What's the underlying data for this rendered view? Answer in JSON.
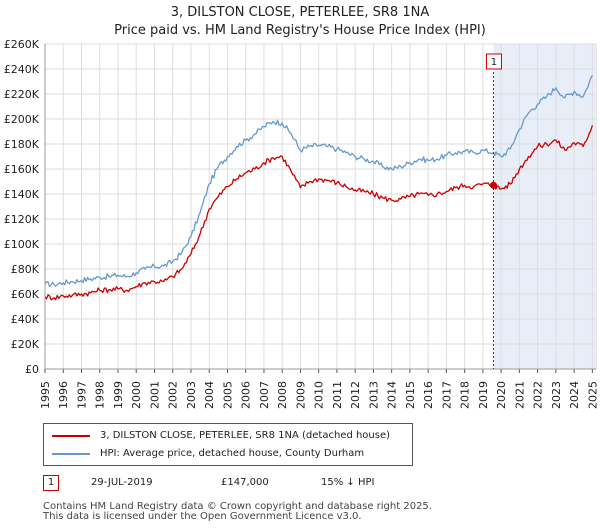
{
  "header": {
    "title": "3, DILSTON CLOSE, PETERLEE, SR8 1NA",
    "subtitle": "Price paid vs. HM Land Registry's House Price Index (HPI)"
  },
  "colors": {
    "property_line": "#cc0000",
    "hpi_line": "#6699cc",
    "shade": "#e8eef8",
    "marker_border": "#cc0000"
  },
  "chart_data": {
    "type": "line",
    "title": "3, DILSTON CLOSE, PETERLEE, SR8 1NA",
    "subtitle": "Price paid vs. HM Land Registry's House Price Index (HPI)",
    "xlim": [
      1995,
      2025.2
    ],
    "ylim": [
      0,
      260000
    ],
    "y_ticks": [
      0,
      20000,
      40000,
      60000,
      80000,
      100000,
      120000,
      140000,
      160000,
      180000,
      200000,
      220000,
      240000,
      260000
    ],
    "y_tick_labels": [
      "£0",
      "£20K",
      "£40K",
      "£60K",
      "£80K",
      "£100K",
      "£120K",
      "£140K",
      "£160K",
      "£180K",
      "£200K",
      "£220K",
      "£240K",
      "£260K"
    ],
    "x_ticks": [
      1995,
      1996,
      1997,
      1998,
      1999,
      2000,
      2001,
      2002,
      2003,
      2004,
      2005,
      2006,
      2007,
      2008,
      2009,
      2010,
      2011,
      2012,
      2013,
      2014,
      2015,
      2016,
      2017,
      2018,
      2019,
      2020,
      2021,
      2022,
      2023,
      2024,
      2025
    ],
    "x_tick_labels": [
      "1995",
      "1996",
      "1997",
      "1998",
      "1999",
      "2000",
      "2001",
      "2002",
      "2003",
      "2004",
      "2005",
      "2006",
      "2007",
      "2008",
      "2009",
      "2010",
      "2011",
      "2012",
      "2013",
      "2014",
      "2015",
      "2016",
      "2017",
      "2018",
      "2019",
      "2020",
      "2021",
      "2022",
      "2023",
      "2024",
      "2025"
    ],
    "grid": true,
    "series": [
      {
        "name": "3, DILSTON CLOSE, PETERLEE, SR8 1NA (detached house)",
        "color": "#cc0000",
        "x": [
          1995.0,
          1995.5,
          1996.0,
          1996.5,
          1997.0,
          1997.5,
          1998.0,
          1998.5,
          1999.0,
          1999.5,
          2000.0,
          2000.5,
          2001.0,
          2001.5,
          2002.0,
          2002.5,
          2003.0,
          2003.5,
          2004.0,
          2004.5,
          2005.0,
          2005.5,
          2006.0,
          2006.5,
          2007.0,
          2007.5,
          2008.0,
          2008.5,
          2009.0,
          2009.5,
          2010.0,
          2010.5,
          2011.0,
          2011.5,
          2012.0,
          2012.5,
          2013.0,
          2013.5,
          2014.0,
          2014.5,
          2015.0,
          2015.5,
          2016.0,
          2016.5,
          2017.0,
          2017.5,
          2018.0,
          2018.5,
          2019.0,
          2019.58,
          2020.0,
          2020.5,
          2021.0,
          2021.5,
          2022.0,
          2022.5,
          2023.0,
          2023.5,
          2024.0,
          2024.5,
          2025.0
        ],
        "values": [
          58000,
          57000,
          58500,
          59000,
          60000,
          61000,
          63000,
          63500,
          64000,
          63000,
          66000,
          69000,
          70000,
          70000,
          74000,
          80000,
          92000,
          108000,
          128000,
          138000,
          146000,
          152000,
          157000,
          160000,
          165000,
          169000,
          170000,
          158000,
          145000,
          150000,
          152000,
          151000,
          149000,
          146000,
          143000,
          142000,
          140000,
          137000,
          135000,
          136000,
          138000,
          140000,
          139000,
          140000,
          142000,
          145000,
          147000,
          146000,
          148000,
          147000,
          144000,
          148000,
          160000,
          170000,
          178000,
          180000,
          183000,
          175000,
          181000,
          178000,
          195000
        ]
      },
      {
        "name": "HPI: Average price, detached house, County Durham",
        "color": "#6699cc",
        "x": [
          1995.0,
          1995.5,
          1996.0,
          1996.5,
          1997.0,
          1997.5,
          1998.0,
          1998.5,
          1999.0,
          1999.5,
          2000.0,
          2000.5,
          2001.0,
          2001.5,
          2002.0,
          2002.5,
          2003.0,
          2003.5,
          2004.0,
          2004.5,
          2005.0,
          2005.5,
          2006.0,
          2006.5,
          2007.0,
          2007.5,
          2008.0,
          2008.5,
          2009.0,
          2009.5,
          2010.0,
          2010.5,
          2011.0,
          2011.5,
          2012.0,
          2012.5,
          2013.0,
          2013.5,
          2014.0,
          2014.5,
          2015.0,
          2015.5,
          2016.0,
          2016.5,
          2017.0,
          2017.5,
          2018.0,
          2018.5,
          2019.0,
          2019.58,
          2020.0,
          2020.5,
          2021.0,
          2021.5,
          2022.0,
          2022.5,
          2023.0,
          2023.5,
          2024.0,
          2024.5,
          2025.0
        ],
        "values": [
          68000,
          67500,
          69000,
          70000,
          71000,
          72000,
          73500,
          74000,
          75000,
          74000,
          77000,
          80000,
          82000,
          82500,
          86000,
          93000,
          106000,
          125000,
          148000,
          162000,
          170000,
          178000,
          183000,
          188000,
          194000,
          198000,
          197000,
          188000,
          175000,
          178000,
          179000,
          178000,
          176000,
          173000,
          170000,
          168000,
          166000,
          162000,
          160000,
          162000,
          165000,
          168000,
          167000,
          168000,
          171000,
          173000,
          174000,
          173000,
          175000,
          173000,
          170000,
          176000,
          192000,
          205000,
          212000,
          218000,
          225000,
          217000,
          222000,
          218000,
          235000
        ]
      }
    ],
    "annotations": [
      {
        "label": "1",
        "x": 2019.58,
        "value": 147000
      }
    ],
    "shaded_region": {
      "from": 2019.58,
      "to": 2025.2
    }
  },
  "legend": {
    "items": [
      {
        "label": "3, DILSTON CLOSE, PETERLEE, SR8 1NA (detached house)",
        "color": "#cc0000"
      },
      {
        "label": "HPI: Average price, detached house, County Durham",
        "color": "#6699cc"
      }
    ]
  },
  "transactions": [
    {
      "marker": "1",
      "date": "29-JUL-2019",
      "price": "£147,000",
      "hpi_diff": "15% ↓ HPI"
    }
  ],
  "footer": {
    "line1": "Contains HM Land Registry data © Crown copyright and database right 2025.",
    "line2": "This data is licensed under the Open Government Licence v3.0."
  }
}
